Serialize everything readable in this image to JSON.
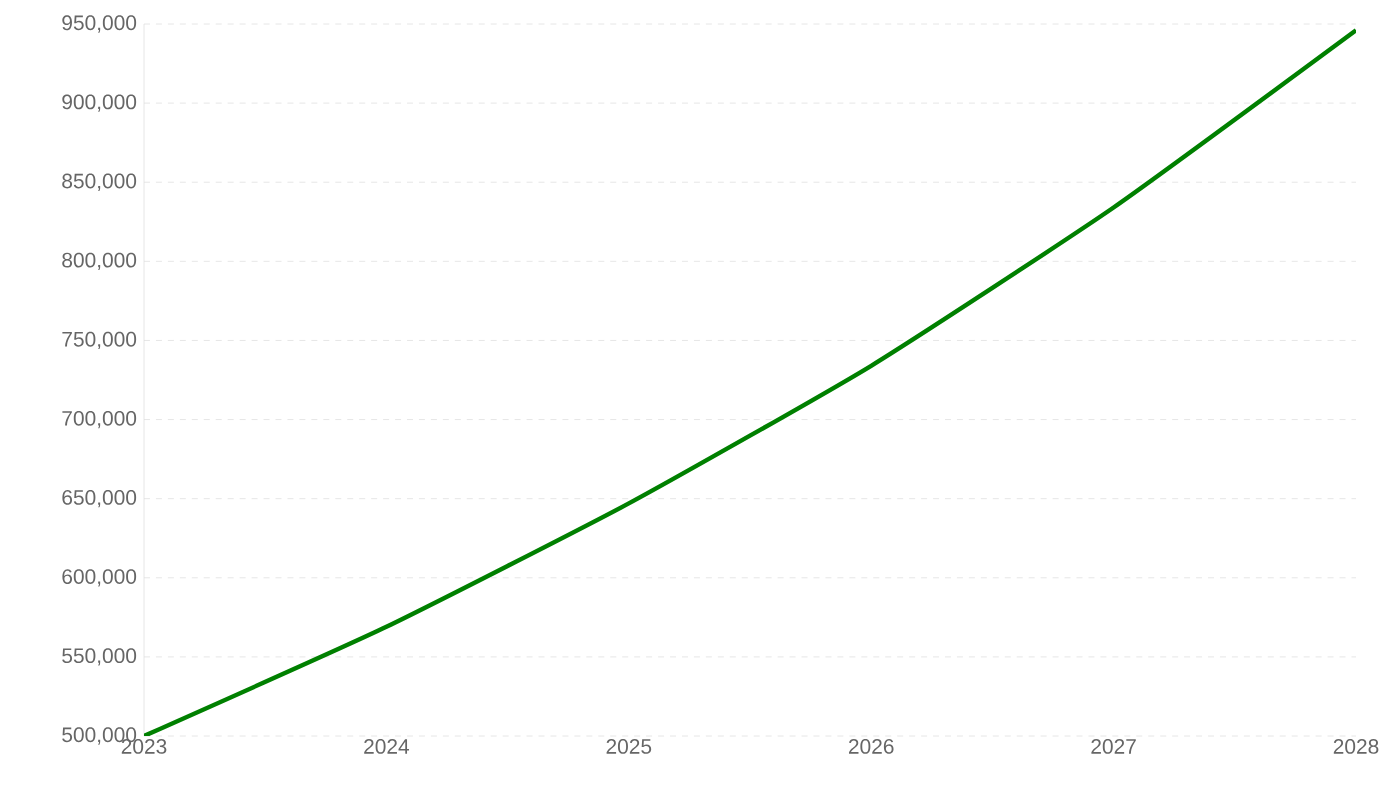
{
  "chart_data": {
    "type": "line",
    "x": [
      2023,
      2024,
      2025,
      2026,
      2027,
      2028
    ],
    "series": [
      {
        "color": "#008000",
        "values": [
          500000,
          569000,
          647000,
          734000,
          834000,
          946000
        ]
      }
    ],
    "xlim": [
      2023,
      2028
    ],
    "xticks": [
      {
        "value": 2023,
        "label": "2023"
      },
      {
        "value": 2024,
        "label": "2024"
      },
      {
        "value": 2025,
        "label": "2025"
      },
      {
        "value": 2026,
        "label": "2026"
      },
      {
        "value": 2027,
        "label": "2027"
      },
      {
        "value": 2028,
        "label": "2028"
      }
    ],
    "ylim": [
      500000,
      950000
    ],
    "yticks": [
      {
        "value": 500000,
        "label": "500,000"
      },
      {
        "value": 550000,
        "label": "550,000"
      },
      {
        "value": 600000,
        "label": "600,000"
      },
      {
        "value": 650000,
        "label": "650,000"
      },
      {
        "value": 700000,
        "label": "700,000"
      },
      {
        "value": 750000,
        "label": "750,000"
      },
      {
        "value": 800000,
        "label": "800,000"
      },
      {
        "value": 850000,
        "label": "850,000"
      },
      {
        "value": 900000,
        "label": "900,000"
      },
      {
        "value": 950000,
        "label": "950,000"
      }
    ],
    "grid": "y",
    "marker": "none",
    "line_style": "solid"
  }
}
